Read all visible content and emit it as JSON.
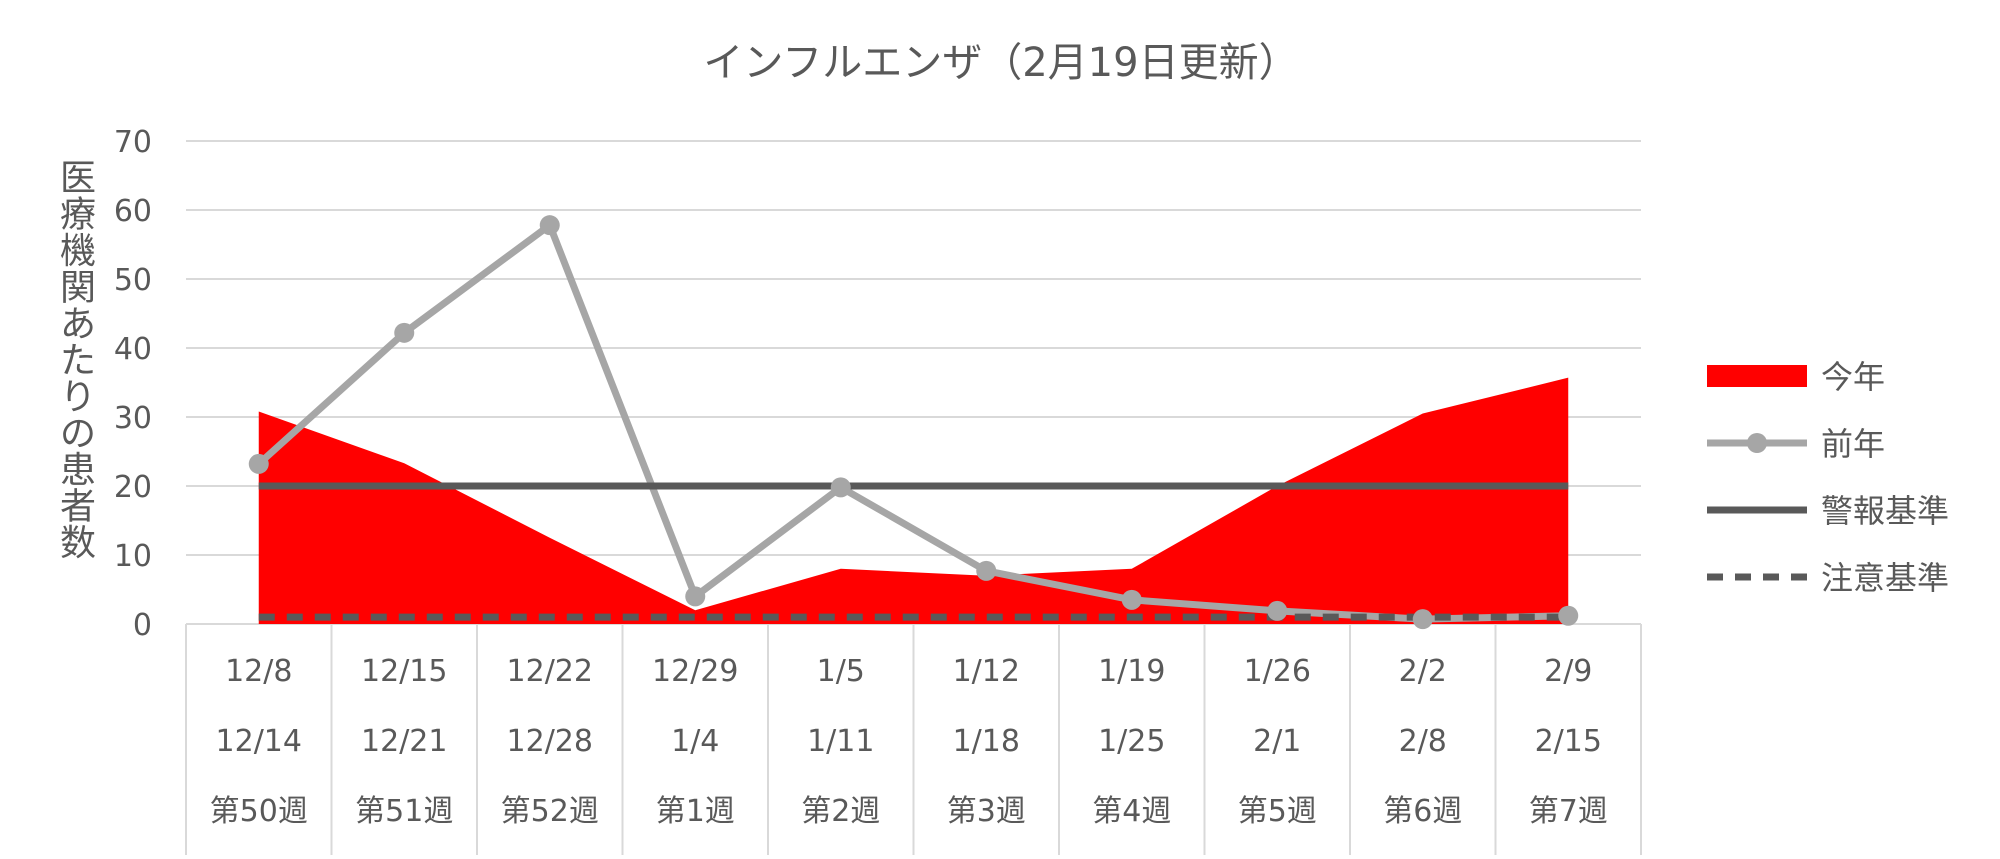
{
  "chart_data": {
    "type": "line",
    "title": "インフルエンザ（2月19日更新）",
    "ylabel": "医療機関あたりの患者数",
    "xlabel": "",
    "ylim": [
      0,
      70
    ],
    "yticks": [
      0,
      10,
      20,
      30,
      40,
      50,
      60,
      70
    ],
    "grid": true,
    "legend_position": "right",
    "categories": [
      [
        "12/8",
        "12/14",
        "第50週"
      ],
      [
        "12/15",
        "12/21",
        "第51週"
      ],
      [
        "12/22",
        "12/28",
        "第52週"
      ],
      [
        "12/29",
        "1/4",
        "第1週"
      ],
      [
        "1/5",
        "1/11",
        "第2週"
      ],
      [
        "1/12",
        "1/18",
        "第3週"
      ],
      [
        "1/19",
        "1/25",
        "第4週"
      ],
      [
        "1/26",
        "2/1",
        "第5週"
      ],
      [
        "2/2",
        "2/8",
        "第6週"
      ],
      [
        "2/9",
        "2/15",
        "第7週"
      ]
    ],
    "series": [
      {
        "name": "今年",
        "type": "area",
        "color": "#ff0000",
        "values": [
          30.8,
          23.3,
          12.5,
          2.0,
          8.0,
          7.0,
          8.0,
          20.0,
          30.5,
          35.7
        ]
      },
      {
        "name": "前年",
        "type": "line-marker",
        "color": "#a6a6a6",
        "values": [
          23.2,
          42.2,
          57.8,
          4.0,
          19.8,
          7.7,
          3.5,
          1.9,
          0.7,
          1.2
        ]
      },
      {
        "name": "警報基準",
        "type": "line",
        "color": "#595959",
        "values": [
          20,
          20,
          20,
          20,
          20,
          20,
          20,
          20,
          20,
          20
        ]
      },
      {
        "name": "注意基準",
        "type": "dashed",
        "color": "#595959",
        "values": [
          1,
          1,
          1,
          1,
          1,
          1,
          1,
          1,
          1,
          1
        ]
      }
    ]
  }
}
